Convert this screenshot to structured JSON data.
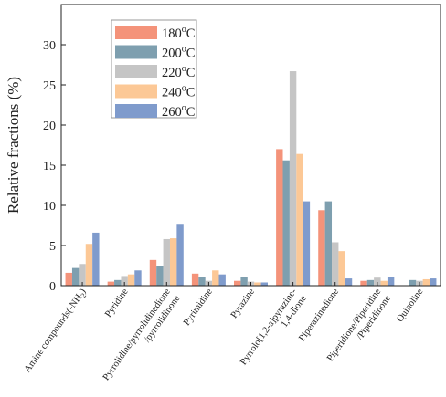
{
  "chart_data": {
    "type": "bar",
    "title": "",
    "xlabel": "",
    "ylabel": "Relative fractions (%)",
    "ylim": [
      0,
      35
    ],
    "yticks": [
      "0",
      "5",
      "10",
      "15",
      "20",
      "25",
      "30"
    ],
    "grid": false,
    "legend_placement": "top-left",
    "categories": [
      [
        "Amine compounds(-NH",
        "2",
        ")"
      ],
      [
        "Pyridine"
      ],
      [
        "Pyrrolidine/pyrrolidinedione",
        "/pyrrolidinone"
      ],
      [
        "Pyrimidine"
      ],
      [
        "Pyrazine"
      ],
      [
        "Pyrrolo[1,2-a]pyrazine-",
        "1,4-dione"
      ],
      [
        "Piperazinedione"
      ],
      [
        "Piperidione/Piperidine",
        "/Piperidinone"
      ],
      [
        "Quinoline"
      ]
    ],
    "series": [
      {
        "name": "180",
        "unit": "oC",
        "color": "#F4937A",
        "values": [
          1.6,
          0.5,
          3.2,
          1.5,
          0.6,
          17.0,
          9.4,
          0.6,
          0.0
        ]
      },
      {
        "name": "200",
        "unit": "oC",
        "color": "#7E9FAF",
        "values": [
          2.2,
          0.7,
          2.5,
          1.1,
          1.1,
          15.6,
          10.5,
          0.7,
          0.7
        ]
      },
      {
        "name": "220",
        "unit": "oC",
        "color": "#C5C5C5",
        "values": [
          2.7,
          1.2,
          5.8,
          0.6,
          0.5,
          26.7,
          5.4,
          1.0,
          0.6
        ]
      },
      {
        "name": "240",
        "unit": "oC",
        "color": "#FCC896",
        "values": [
          5.2,
          1.4,
          5.9,
          1.9,
          0.4,
          16.4,
          4.3,
          0.6,
          0.8
        ]
      },
      {
        "name": "260",
        "unit": "oC",
        "color": "#7F9BCC",
        "values": [
          6.6,
          1.9,
          7.7,
          1.4,
          0.4,
          10.5,
          0.9,
          1.1,
          0.9
        ]
      }
    ]
  }
}
